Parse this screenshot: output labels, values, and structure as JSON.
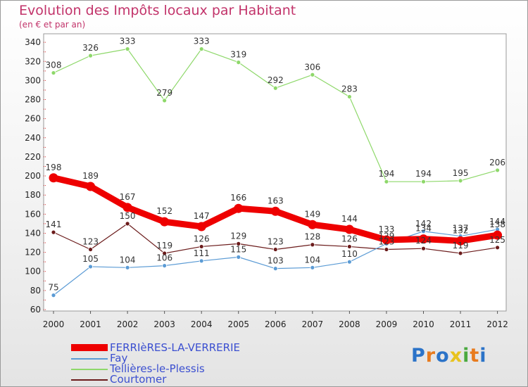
{
  "chart_data": {
    "type": "line",
    "title": "Evolution des Impôts locaux par Habitant",
    "subtitle": "(en € et par an)",
    "xlabel": "",
    "ylabel": "",
    "ylim": [
      60,
      345
    ],
    "yticks": [
      60,
      80,
      100,
      120,
      140,
      160,
      180,
      200,
      220,
      240,
      260,
      280,
      300,
      320,
      340
    ],
    "categories": [
      "2000",
      "2001",
      "2002",
      "2003",
      "2004",
      "2005",
      "2006",
      "2007",
      "2008",
      "2009",
      "2010",
      "2011",
      "2012"
    ],
    "series": [
      {
        "name": "FERRIèRES-LA-VERRERIE",
        "color": "#ee0000",
        "values": [
          198,
          189,
          167,
          152,
          147,
          166,
          163,
          149,
          144,
          133,
          134,
          132,
          138
        ]
      },
      {
        "name": "Fay",
        "color": "#5b9bd5",
        "values": [
          75,
          105,
          104,
          106,
          111,
          115,
          103,
          104,
          110,
          129,
          142,
          137,
          144
        ]
      },
      {
        "name": "Tellières-le-Plessis",
        "color": "#8ed86a",
        "values": [
          308,
          326,
          333,
          279,
          333,
          319,
          292,
          306,
          283,
          194,
          194,
          195,
          206
        ]
      },
      {
        "name": "Courtomer",
        "color": "#6b1b1b",
        "values": [
          141,
          123,
          150,
          119,
          126,
          129,
          123,
          128,
          126,
          123,
          124,
          119,
          125
        ]
      }
    ],
    "legend_position": "bottom-left",
    "grid": false
  },
  "branding": {
    "logo_text": "Proxiti",
    "logo_colors": [
      "#2b73c8",
      "#e87b1e",
      "#2b73c8",
      "#e8c31e",
      "#4aa93f",
      "#e87b1e",
      "#2b73c8"
    ]
  }
}
